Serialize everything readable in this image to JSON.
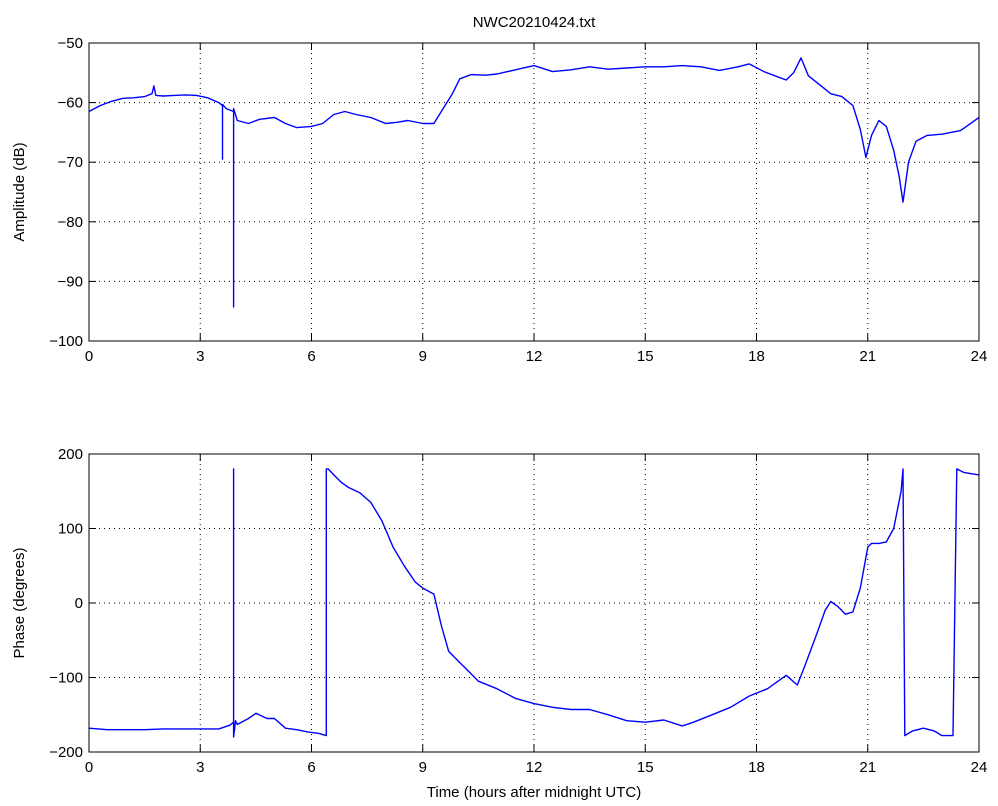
{
  "figure_title": "NWC20210424.txt",
  "chart_data": [
    {
      "type": "line",
      "title": "NWC20210424.txt",
      "xlabel": "",
      "ylabel": "Amplitude (dB)",
      "xlim": [
        0,
        24
      ],
      "ylim": [
        -100,
        -50
      ],
      "xticks": [
        "0",
        "3",
        "6",
        "9",
        "12",
        "15",
        "18",
        "21",
        "24"
      ],
      "yticks": [
        "−50",
        "−60",
        "−70",
        "−80",
        "−90",
        "−100"
      ],
      "grid": true,
      "line_color": "#0000ff",
      "series": [
        {
          "x": [
            0,
            0.3,
            0.6,
            0.9,
            1.2,
            1.5,
            1.7,
            1.75,
            1.8,
            2.0,
            2.3,
            2.6,
            2.9,
            3.2,
            3.5,
            3.6,
            3.6,
            3.6,
            3.7,
            3.9,
            3.9,
            3.9,
            4.0,
            4.3,
            4.6,
            5.0,
            5.3,
            5.6,
            6.0,
            6.3,
            6.6,
            6.9,
            7.2,
            7.6,
            8.0,
            8.3,
            8.6,
            9.0,
            9.3,
            9.5,
            9.8,
            10.0,
            10.3,
            10.7,
            11.0,
            11.5,
            12.0,
            12.5,
            13.0,
            13.5,
            14.0,
            14.5,
            15.0,
            15.5,
            16.0,
            16.5,
            17.0,
            17.5,
            17.8,
            18.2,
            18.5,
            18.8,
            19.0,
            19.2,
            19.4,
            19.6,
            19.8,
            20.0,
            20.3,
            20.6,
            20.8,
            20.95,
            21.1,
            21.3,
            21.5,
            21.7,
            21.85,
            21.95,
            22.1,
            22.3,
            22.6,
            23.0,
            23.5,
            24.0
          ],
          "y": [
            -61.5,
            -60.5,
            -59.8,
            -59.3,
            -59.2,
            -59.0,
            -58.5,
            -57.2,
            -58.8,
            -58.9,
            -58.8,
            -58.7,
            -58.8,
            -59.2,
            -60.0,
            -60.5,
            -69.5,
            -60.3,
            -61.0,
            -61.5,
            -94.3,
            -61.0,
            -63.0,
            -63.5,
            -62.8,
            -62.5,
            -63.5,
            -64.2,
            -64.0,
            -63.5,
            -62.0,
            -61.5,
            -62.0,
            -62.5,
            -63.5,
            -63.3,
            -63.0,
            -63.5,
            -63.5,
            -61.5,
            -58.5,
            -56.0,
            -55.3,
            -55.4,
            -55.2,
            -54.5,
            -53.8,
            -54.8,
            -54.5,
            -54.0,
            -54.4,
            -54.2,
            -54.0,
            -54.0,
            -53.8,
            -54.0,
            -54.6,
            -54.0,
            -53.5,
            -54.8,
            -55.5,
            -56.2,
            -55.0,
            -52.5,
            -55.5,
            -56.5,
            -57.5,
            -58.5,
            -59.0,
            -60.5,
            -64.5,
            -69.2,
            -65.5,
            -63.0,
            -64.0,
            -68.0,
            -72.5,
            -76.7,
            -70.0,
            -66.5,
            -65.5,
            -65.3,
            -64.7,
            -62.5
          ]
        }
      ]
    },
    {
      "type": "line",
      "title": "",
      "xlabel": "Time (hours after midnight UTC)",
      "ylabel": "Phase (degrees)",
      "xlim": [
        0,
        24
      ],
      "ylim": [
        -200,
        200
      ],
      "xticks": [
        "0",
        "3",
        "6",
        "9",
        "12",
        "15",
        "18",
        "21",
        "24"
      ],
      "yticks": [
        "200",
        "100",
        "0",
        "−100",
        "−200"
      ],
      "grid": true,
      "line_color": "#0000ff",
      "series": [
        {
          "x": [
            0,
            0.5,
            1.0,
            1.5,
            2.0,
            2.5,
            3.0,
            3.5,
            3.8,
            3.9,
            3.9,
            3.9,
            3.95,
            4.0,
            4.3,
            4.5,
            4.8,
            5.0,
            5.3,
            5.6,
            5.9,
            6.2,
            6.4,
            6.4,
            6.45,
            6.6,
            6.8,
            7.0,
            7.3,
            7.6,
            7.9,
            8.2,
            8.5,
            8.8,
            9.0,
            9.3,
            9.5,
            9.7,
            10.0,
            10.2,
            10.5,
            11.0,
            11.5,
            12.0,
            12.5,
            13.0,
            13.5,
            14.0,
            14.5,
            15.0,
            15.5,
            16.0,
            16.3,
            16.8,
            17.3,
            17.8,
            18.3,
            18.8,
            19.1,
            19.3,
            19.6,
            19.85,
            20.0,
            20.2,
            20.4,
            20.6,
            20.8,
            21.0,
            21.1,
            21.3,
            21.5,
            21.7,
            21.8,
            21.9,
            21.95,
            22.0,
            22.2,
            22.5,
            22.8,
            23.0,
            23.3,
            23.4,
            23.4,
            23.6,
            24.0
          ],
          "y": [
            -168,
            -170,
            -170,
            -170,
            -169,
            -169,
            -169,
            -169,
            -164,
            -160,
            180,
            -180,
            -158,
            -163,
            -155,
            -148,
            -155,
            -155,
            -168,
            -170,
            -173,
            -175,
            -178,
            180,
            180,
            172,
            162,
            155,
            148,
            135,
            110,
            75,
            50,
            28,
            20,
            12,
            -30,
            -65,
            -80,
            -90,
            -105,
            -115,
            -128,
            -135,
            -140,
            -143,
            -143,
            -150,
            -158,
            -160,
            -157,
            -165,
            -160,
            -150,
            -140,
            -125,
            -115,
            -97,
            -110,
            -85,
            -45,
            -10,
            2,
            -5,
            -15,
            -12,
            20,
            75,
            80,
            80,
            82,
            100,
            125,
            150,
            180,
            -178,
            -172,
            -168,
            -172,
            -178,
            -178,
            180,
            180,
            175,
            172
          ]
        }
      ]
    }
  ]
}
